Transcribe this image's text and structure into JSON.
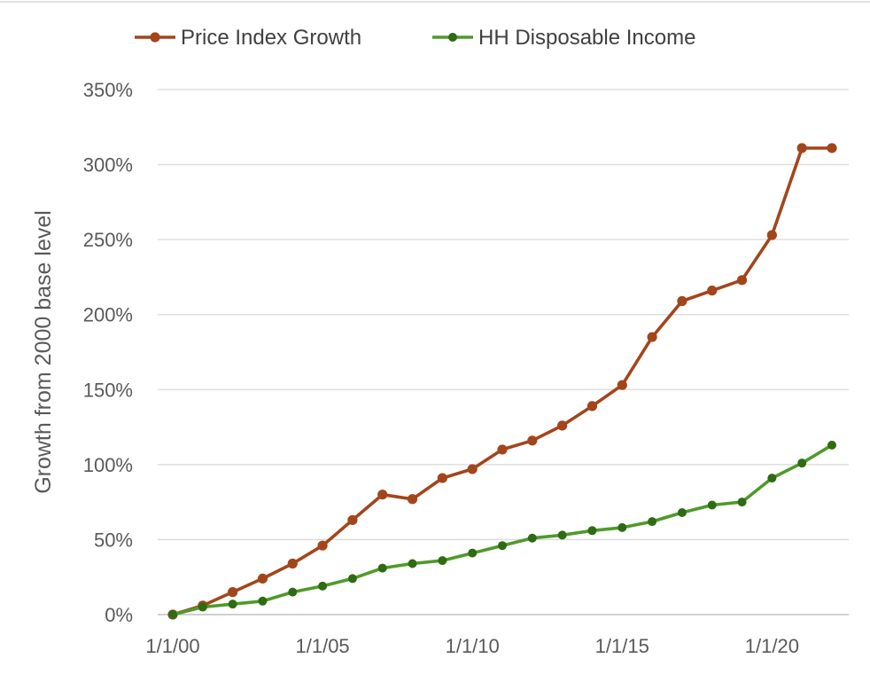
{
  "chart_data": {
    "type": "line",
    "ylabel": "Growth from 2000 base level",
    "x": [
      "1/1/00",
      "1/1/01",
      "1/1/02",
      "1/1/03",
      "1/1/04",
      "1/1/05",
      "1/1/06",
      "1/1/07",
      "1/1/08",
      "1/1/09",
      "1/1/10",
      "1/1/11",
      "1/1/12",
      "1/1/13",
      "1/1/14",
      "1/1/15",
      "1/1/16",
      "1/1/17",
      "1/1/18",
      "1/1/19",
      "1/1/20",
      "1/1/21",
      "1/1/22"
    ],
    "x_tick_labels": [
      "1/1/00",
      "1/1/05",
      "1/1/10",
      "1/1/15",
      "1/1/20"
    ],
    "y_tick_labels": [
      "0%",
      "50%",
      "100%",
      "150%",
      "200%",
      "250%",
      "300%",
      "350%"
    ],
    "ylim": [
      0,
      350
    ],
    "y_unit": "%",
    "grid": "horizontal",
    "legend_position": "top",
    "series": [
      {
        "name": "Price Index Growth",
        "color": "#a3451b",
        "values": [
          0,
          6,
          15,
          24,
          34,
          46,
          63,
          80,
          77,
          91,
          97,
          110,
          116,
          126,
          139,
          153,
          185,
          209,
          216,
          223,
          253,
          311,
          311
        ]
      },
      {
        "name": "HH Disposable Income",
        "color": "#2e6b12",
        "line_color": "#4f9a2a",
        "values": [
          0,
          5,
          7,
          9,
          15,
          19,
          24,
          31,
          34,
          36,
          41,
          46,
          51,
          53,
          56,
          58,
          62,
          68,
          73,
          75,
          91,
          101,
          113
        ]
      }
    ]
  }
}
